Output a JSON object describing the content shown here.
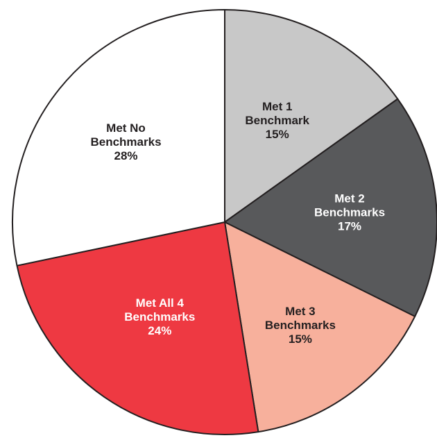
{
  "chart_data": {
    "type": "pie",
    "start_angle_deg": 0,
    "direction": "clockwise",
    "slices": [
      {
        "name": "Met 1 Benchmark",
        "value": 15,
        "label_lines": [
          "Met 1",
          "Benchmark",
          "15%"
        ],
        "color": "#c8c8c8",
        "label_color": "#231f20"
      },
      {
        "name": "Met 2 Benchmarks",
        "value": 17,
        "label_lines": [
          "Met 2",
          "Benchmarks",
          "17%"
        ],
        "color": "#58595b",
        "label_color": "#ffffff"
      },
      {
        "name": "Met 3 Benchmarks",
        "value": 15,
        "label_lines": [
          "Met 3",
          "Benchmarks",
          "15%"
        ],
        "color": "#f7b09c",
        "label_color": "#231f20"
      },
      {
        "name": "Met All 4 Benchmarks",
        "value": 24,
        "label_lines": [
          "Met All 4",
          "Benchmarks",
          "24%"
        ],
        "color": "#ee3942",
        "label_color": "#ffffff"
      },
      {
        "name": "Met No Benchmarks",
        "value": 28,
        "label_lines": [
          "Met No",
          "Benchmarks",
          "28%"
        ],
        "color": "#ffffff",
        "label_color": "#231f20"
      }
    ]
  }
}
